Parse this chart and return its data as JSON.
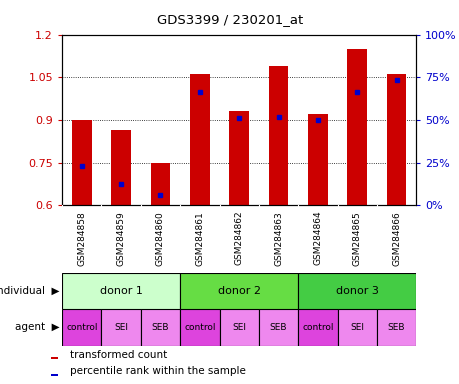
{
  "title": "GDS3399 / 230201_at",
  "samples": [
    "GSM284858",
    "GSM284859",
    "GSM284860",
    "GSM284861",
    "GSM284862",
    "GSM284863",
    "GSM284864",
    "GSM284865",
    "GSM284866"
  ],
  "transformed_counts": [
    0.9,
    0.865,
    0.75,
    1.06,
    0.93,
    1.09,
    0.92,
    1.15,
    1.06
  ],
  "percentile_ranks_y": [
    0.737,
    0.675,
    0.635,
    0.997,
    0.906,
    0.909,
    0.901,
    0.997,
    1.042
  ],
  "ylim": [
    0.6,
    1.2
  ],
  "yticks": [
    0.6,
    0.75,
    0.9,
    1.05,
    1.2
  ],
  "y2_ticks_pct": [
    0,
    25,
    50,
    75,
    100
  ],
  "bar_color": "#cc0000",
  "marker_color": "#0000cc",
  "individuals": [
    {
      "label": "donor 1",
      "span": [
        0,
        3
      ],
      "color": "#ccffcc"
    },
    {
      "label": "donor 2",
      "span": [
        3,
        6
      ],
      "color": "#66dd44"
    },
    {
      "label": "donor 3",
      "span": [
        6,
        9
      ],
      "color": "#44cc44"
    }
  ],
  "agents": [
    "control",
    "SEI",
    "SEB",
    "control",
    "SEI",
    "SEB",
    "control",
    "SEI",
    "SEB"
  ],
  "agent_colors": [
    "#dd44dd",
    "#ee88ee",
    "#ee88ee",
    "#dd44dd",
    "#ee88ee",
    "#ee88ee",
    "#dd44dd",
    "#ee88ee",
    "#ee88ee"
  ],
  "tick_label_color": "#cc0000",
  "y2_color": "#0000cc",
  "xtick_bg_color": "#cccccc",
  "bar_width": 0.5
}
